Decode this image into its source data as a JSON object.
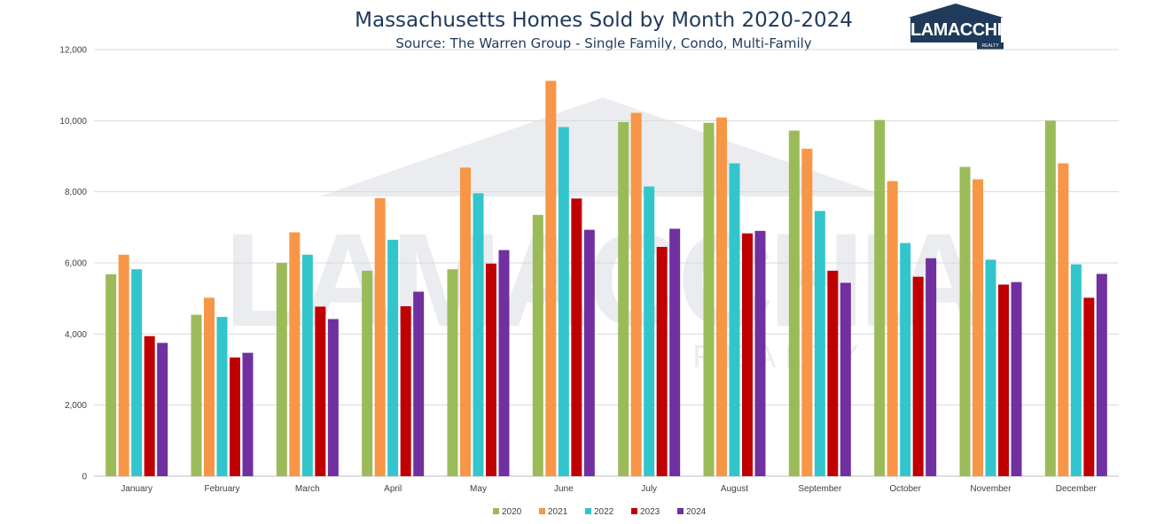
{
  "chart_data": {
    "type": "bar",
    "title": "Massachusetts Homes Sold by Month 2020-2024",
    "subtitle": "Source: The Warren Group - Single Family, Condo, Multi-Family",
    "categories": [
      "January",
      "February",
      "March",
      "April",
      "May",
      "June",
      "July",
      "August",
      "September",
      "October",
      "November",
      "December"
    ],
    "series": [
      {
        "name": "2020",
        "color": "#9bbb59",
        "values": [
          5680,
          4540,
          6000,
          5780,
          5820,
          7350,
          9960,
          9940,
          9720,
          10020,
          8700,
          10000
        ]
      },
      {
        "name": "2021",
        "color": "#f79646",
        "values": [
          6230,
          5020,
          6860,
          7820,
          8680,
          11120,
          10220,
          10090,
          9210,
          8300,
          8350,
          8800
        ]
      },
      {
        "name": "2022",
        "color": "#33c5cc",
        "values": [
          5820,
          4480,
          6230,
          6650,
          7960,
          9820,
          8150,
          8800,
          7460,
          6560,
          6090,
          5960
        ]
      },
      {
        "name": "2023",
        "color": "#c00000",
        "values": [
          3940,
          3340,
          4770,
          4780,
          5980,
          7810,
          6450,
          6830,
          5780,
          5610,
          5390,
          5020
        ]
      },
      {
        "name": "2024",
        "color": "#7030a0",
        "values": [
          3750,
          3470,
          4420,
          5190,
          6360,
          6930,
          6960,
          6900,
          5440,
          6130,
          5460,
          5690
        ]
      }
    ],
    "yticks": [
      "0",
      "2,000",
      "4,000",
      "6,000",
      "8,000",
      "10,000",
      "12,000"
    ],
    "ylim": [
      0,
      12000
    ],
    "grid": true,
    "legend": "bottom-center"
  },
  "logo": {
    "name": "LAMACCHIA",
    "sub": "REALTY"
  },
  "watermark": {
    "text": "LAMACCHIA",
    "sub": "REALTY"
  }
}
